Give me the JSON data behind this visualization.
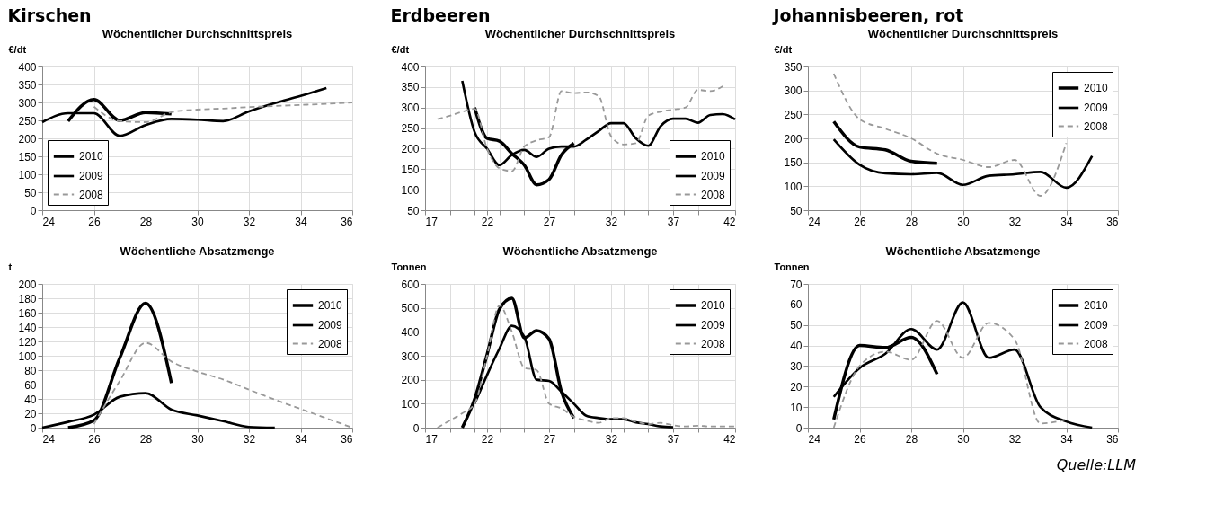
{
  "chart_data": [
    {
      "type": "line",
      "title": "Kirschen",
      "subtitle": "Wöchentlicher Durchschnittspreis",
      "ylabel": "€/dt",
      "xlim": [
        24,
        36
      ],
      "xticks": [
        24,
        26,
        28,
        30,
        32,
        34,
        36
      ],
      "ylim": [
        0,
        400
      ],
      "yticks": [
        0,
        50,
        100,
        150,
        200,
        250,
        300,
        350,
        400
      ],
      "grid": true,
      "legend": "bottom left",
      "marker": "none",
      "series": [
        {
          "name": "2010",
          "color": "#000000",
          "line_style": "solid",
          "x": [
            25,
            26,
            27,
            28,
            29
          ],
          "values": [
            248,
            308,
            250,
            272,
            268
          ]
        },
        {
          "name": "2009",
          "color": "#000000",
          "line_style": "solid",
          "x": [
            24,
            25,
            26,
            27,
            28,
            29,
            30,
            31,
            32,
            33,
            34,
            35
          ],
          "values": [
            245,
            270,
            270,
            207,
            237,
            254,
            252,
            248,
            275,
            298,
            318,
            340
          ]
        },
        {
          "name": "2008",
          "color": "#999999",
          "line_style": "dashed",
          "x": [
            26,
            27,
            28,
            29,
            30,
            31,
            32,
            33,
            34,
            35,
            36
          ],
          "values": [
            288,
            248,
            245,
            273,
            280,
            283,
            287,
            290,
            293,
            296,
            300
          ]
        }
      ]
    },
    {
      "type": "line",
      "title": "Erdbeeren",
      "subtitle": "Wöchentlicher Durchschnittspreis",
      "ylabel": "€/dt",
      "xlim": [
        17,
        42
      ],
      "xticks": [
        17,
        {
          "value": 19,
          "label": null
        },
        {
          "value": 21,
          "label": null
        },
        22,
        {
          "value": 23,
          "label": null
        },
        {
          "value": 25,
          "label": null
        },
        27,
        {
          "value": 29,
          "label": null
        },
        {
          "value": 31,
          "label": null
        },
        32,
        {
          "value": 33,
          "label": null
        },
        {
          "value": 35,
          "label": null
        },
        37,
        {
          "value": 39,
          "label": null
        },
        {
          "value": 41,
          "label": null
        },
        42
      ],
      "ylim": [
        50,
        400
      ],
      "yticks": [
        50,
        100,
        150,
        200,
        250,
        300,
        350,
        400
      ],
      "grid": true,
      "legend": "bottom right",
      "marker": "none",
      "series": [
        {
          "name": "2010",
          "color": "#000000",
          "line_style": "solid",
          "x": [
            21,
            22,
            23,
            24,
            25,
            26,
            27,
            28,
            29
          ],
          "values": [
            300,
            225,
            218,
            188,
            160,
            112,
            125,
            185,
            213
          ]
        },
        {
          "name": "2009",
          "color": "#000000",
          "line_style": "solid",
          "x": [
            20,
            21,
            22,
            23,
            24,
            25,
            26,
            27,
            28,
            29,
            30,
            31,
            32,
            33,
            34,
            35,
            36,
            37,
            38,
            39,
            40,
            41,
            42
          ],
          "values": [
            365,
            240,
            200,
            160,
            185,
            197,
            180,
            200,
            205,
            205,
            222,
            243,
            262,
            262,
            225,
            207,
            255,
            273,
            273,
            263,
            282,
            284,
            271
          ]
        },
        {
          "name": "2008",
          "color": "#999999",
          "line_style": "dashed",
          "x": [
            18,
            19,
            20,
            21,
            22,
            23,
            24,
            25,
            26,
            27,
            28,
            29,
            30,
            31,
            32,
            33,
            34,
            35,
            36,
            37,
            38,
            39,
            40,
            41
          ],
          "values": [
            272,
            280,
            290,
            297,
            200,
            152,
            145,
            205,
            220,
            228,
            340,
            335,
            337,
            328,
            230,
            210,
            213,
            280,
            290,
            295,
            300,
            343,
            340,
            352
          ]
        }
      ]
    },
    {
      "type": "line",
      "title": "Johannisbeeren, rot",
      "subtitle": "Wöchentlicher Durchschnittspreis",
      "ylabel": "€/dt",
      "xlim": [
        24,
        36
      ],
      "xticks": [
        24,
        26,
        28,
        30,
        32,
        34,
        36
      ],
      "ylim": [
        50,
        350
      ],
      "yticks": [
        50,
        100,
        150,
        200,
        250,
        300,
        350
      ],
      "grid": true,
      "legend": "top right",
      "marker": "none",
      "series": [
        {
          "name": "2010",
          "color": "#000000",
          "line_style": "solid",
          "x": [
            25,
            26,
            27,
            28,
            29
          ],
          "values": [
            235,
            182,
            176,
            152,
            148
          ]
        },
        {
          "name": "2009",
          "color": "#000000",
          "line_style": "solid",
          "x": [
            25,
            26,
            27,
            28,
            29,
            30,
            31,
            32,
            33,
            34,
            35
          ],
          "values": [
            198,
            145,
            127,
            125,
            128,
            103,
            122,
            125,
            130,
            97,
            163
          ]
        },
        {
          "name": "2008",
          "color": "#999999",
          "line_style": "dashed",
          "x": [
            25,
            26,
            27,
            28,
            29,
            30,
            31,
            32,
            33,
            34
          ],
          "values": [
            335,
            240,
            220,
            200,
            168,
            155,
            140,
            155,
            80,
            190
          ]
        }
      ]
    },
    {
      "type": "line",
      "title": "Wöchentliche Absatzmenge",
      "ylabel": "t",
      "xlim": [
        24,
        36
      ],
      "xticks": [
        24,
        26,
        28,
        30,
        32,
        34,
        36
      ],
      "ylim": [
        0,
        200
      ],
      "yticks": [
        0,
        20,
        40,
        60,
        80,
        100,
        120,
        140,
        160,
        180,
        200
      ],
      "grid": true,
      "legend": "top right",
      "marker": "none",
      "series": [
        {
          "name": "2010",
          "color": "#000000",
          "line_style": "solid",
          "x": [
            25,
            26,
            27,
            28,
            29
          ],
          "values": [
            0,
            10,
            97,
            173,
            62
          ]
        },
        {
          "name": "2009",
          "color": "#000000",
          "line_style": "solid",
          "x": [
            24,
            25,
            26,
            27,
            28,
            29,
            30,
            31,
            32,
            33
          ],
          "values": [
            0,
            8,
            18,
            43,
            48,
            25,
            17,
            9,
            1,
            0
          ]
        },
        {
          "name": "2008",
          "color": "#999999",
          "line_style": "dashed",
          "x": [
            26,
            27,
            28,
            29,
            30,
            31,
            32,
            33,
            34,
            35,
            36
          ],
          "values": [
            5,
            65,
            118,
            92,
            78,
            67,
            53,
            39,
            26,
            13,
            0
          ]
        }
      ]
    },
    {
      "type": "line",
      "title": "Wöchentliche Absatzmenge",
      "ylabel": "Tonnen",
      "xlim": [
        17,
        42
      ],
      "xticks": [
        17,
        {
          "value": 19,
          "label": null
        },
        {
          "value": 21,
          "label": null
        },
        22,
        {
          "value": 23,
          "label": null
        },
        {
          "value": 25,
          "label": null
        },
        27,
        {
          "value": 29,
          "label": null
        },
        {
          "value": 31,
          "label": null
        },
        32,
        {
          "value": 33,
          "label": null
        },
        {
          "value": 35,
          "label": null
        },
        37,
        {
          "value": 39,
          "label": null
        },
        {
          "value": 41,
          "label": null
        },
        42
      ],
      "ylim": [
        0,
        600
      ],
      "yticks": [
        0,
        100,
        200,
        300,
        400,
        500,
        600
      ],
      "grid": true,
      "legend": "top right",
      "marker": "none",
      "series": [
        {
          "name": "2010",
          "color": "#000000",
          "line_style": "solid",
          "x": [
            20,
            21,
            22,
            23,
            24,
            25,
            26,
            27,
            28,
            29
          ],
          "values": [
            0,
            120,
            305,
            495,
            540,
            375,
            405,
            370,
            150,
            40
          ]
        },
        {
          "name": "2009",
          "color": "#000000",
          "line_style": "solid",
          "x": [
            21,
            22,
            23,
            24,
            25,
            26,
            27,
            28,
            29,
            30,
            31,
            32,
            33,
            34,
            35,
            36,
            37
          ],
          "values": [
            100,
            220,
            330,
            425,
            380,
            200,
            195,
            150,
            100,
            50,
            40,
            35,
            35,
            22,
            15,
            5,
            2
          ]
        },
        {
          "name": "2008",
          "color": "#999999",
          "line_style": "dashed",
          "x": [
            18,
            19,
            20,
            21,
            22,
            23,
            24,
            25,
            26,
            27,
            28,
            29,
            30,
            31,
            32,
            33,
            34,
            35,
            36,
            37,
            38,
            39,
            40,
            41,
            42
          ],
          "values": [
            0,
            30,
            60,
            100,
            300,
            510,
            400,
            250,
            240,
            100,
            80,
            45,
            30,
            20,
            40,
            40,
            25,
            15,
            20,
            10,
            5,
            8,
            5,
            5,
            5
          ]
        }
      ]
    },
    {
      "type": "line",
      "title": "Wöchentliche Absatzmenge",
      "ylabel": "Tonnen",
      "xlim": [
        24,
        36
      ],
      "xticks": [
        24,
        26,
        28,
        30,
        32,
        34,
        36
      ],
      "ylim": [
        0,
        70
      ],
      "yticks": [
        0,
        10,
        20,
        30,
        40,
        50,
        60,
        70
      ],
      "grid": true,
      "legend": "top right",
      "marker": "none",
      "annotations": [
        "Quelle:LLM"
      ],
      "series": [
        {
          "name": "2010",
          "color": "#000000",
          "line_style": "solid",
          "x": [
            25,
            26,
            27,
            28,
            29
          ],
          "values": [
            4,
            40,
            39,
            44,
            26
          ]
        },
        {
          "name": "2009",
          "color": "#000000",
          "line_style": "solid",
          "x": [
            25,
            26,
            27,
            28,
            29,
            30,
            31,
            32,
            33,
            34,
            35
          ],
          "values": [
            15,
            29,
            36,
            48,
            38,
            61,
            34,
            38,
            10,
            3,
            0
          ]
        },
        {
          "name": "2008",
          "color": "#999999",
          "line_style": "dashed",
          "x": [
            25,
            26,
            27,
            28,
            29,
            30,
            31,
            32,
            33,
            34
          ],
          "values": [
            0,
            30,
            37,
            33,
            52,
            34,
            51,
            43,
            2,
            4
          ]
        }
      ]
    }
  ]
}
